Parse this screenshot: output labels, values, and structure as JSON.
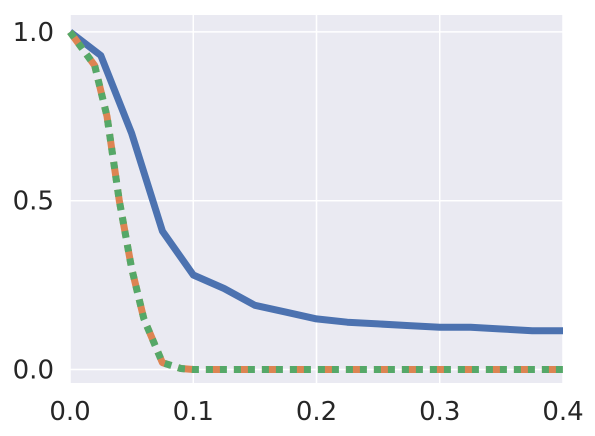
{
  "chart_data": {
    "type": "line",
    "title": "",
    "xlabel": "",
    "ylabel": "",
    "xlim": [
      0.0,
      0.4
    ],
    "ylim": [
      -0.04,
      1.05
    ],
    "grid": true,
    "legend": "none",
    "x_ticks": [
      {
        "value": 0.0,
        "label": "0.0"
      },
      {
        "value": 0.1,
        "label": "0.1"
      },
      {
        "value": 0.2,
        "label": "0.2"
      },
      {
        "value": 0.3,
        "label": "0.3"
      },
      {
        "value": 0.4,
        "label": "0.4"
      }
    ],
    "y_ticks": [
      {
        "value": 0.0,
        "label": "0.0"
      },
      {
        "value": 0.5,
        "label": "0.5"
      },
      {
        "value": 1.0,
        "label": "1.0"
      }
    ],
    "series": [
      {
        "color": "#4c72b0",
        "style": "solid",
        "x": [
          0.0,
          0.025,
          0.05,
          0.075,
          0.1,
          0.125,
          0.15,
          0.175,
          0.2,
          0.225,
          0.25,
          0.275,
          0.3,
          0.325,
          0.35,
          0.375,
          0.4
        ],
        "y": [
          1.0,
          0.93,
          0.7,
          0.41,
          0.28,
          0.24,
          0.19,
          0.17,
          0.15,
          0.14,
          0.135,
          0.13,
          0.125,
          0.125,
          0.12,
          0.115,
          0.115
        ]
      },
      {
        "color": "#dd8452",
        "style": "dashed",
        "x": [
          0.0,
          0.02,
          0.03,
          0.04,
          0.05,
          0.06,
          0.075,
          0.09,
          0.1,
          0.15,
          0.2,
          0.25,
          0.3,
          0.35,
          0.4
        ],
        "y": [
          1.0,
          0.9,
          0.75,
          0.5,
          0.3,
          0.15,
          0.02,
          0.003,
          0.0,
          0.0,
          0.0,
          0.0,
          0.0,
          0.0,
          0.0
        ]
      },
      {
        "color": "#55a868",
        "style": "dotted",
        "x": [
          0.0,
          0.02,
          0.03,
          0.04,
          0.05,
          0.06,
          0.075,
          0.09,
          0.1,
          0.15,
          0.2,
          0.25,
          0.3,
          0.35,
          0.4
        ],
        "y": [
          1.0,
          0.9,
          0.75,
          0.5,
          0.3,
          0.15,
          0.02,
          0.003,
          0.0,
          0.0,
          0.0,
          0.0,
          0.0,
          0.0,
          0.0
        ]
      }
    ]
  }
}
